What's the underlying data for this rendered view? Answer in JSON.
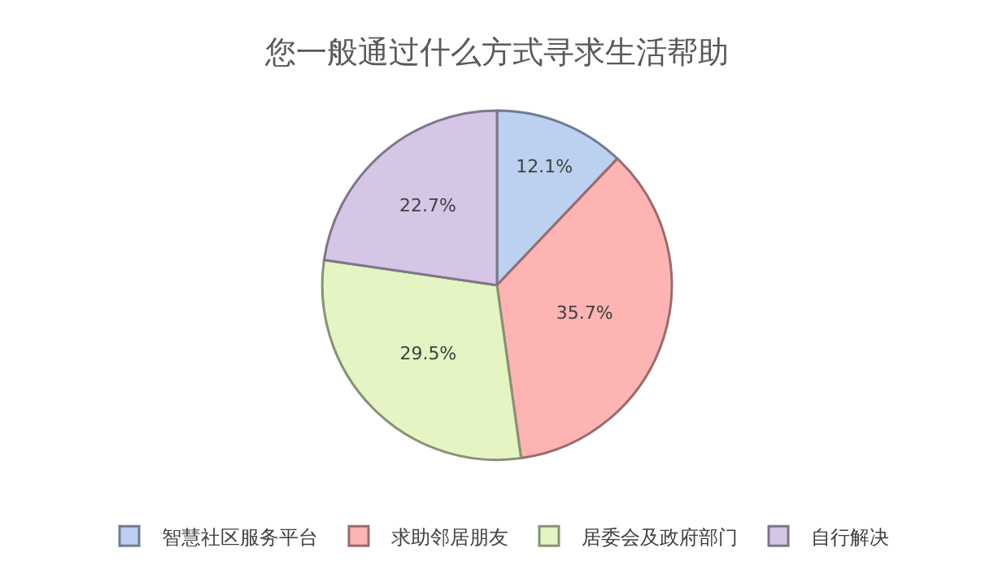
{
  "chart_data": {
    "type": "pie",
    "title": "您一般通过什么方式寻求生活帮助",
    "categories": [
      "智慧社区服务平台",
      "求助邻居朋友",
      "居委会及政府部门",
      "自行解决"
    ],
    "values": [
      12.1,
      35.7,
      29.5,
      22.7
    ],
    "colors": [
      "#bcd0f0",
      "#ffb4b4",
      "#e4f4c2",
      "#d5c6e6"
    ],
    "value_labels": [
      "12.1%",
      "35.7%",
      "29.5%",
      "22.7%"
    ],
    "legend": "bottom"
  }
}
